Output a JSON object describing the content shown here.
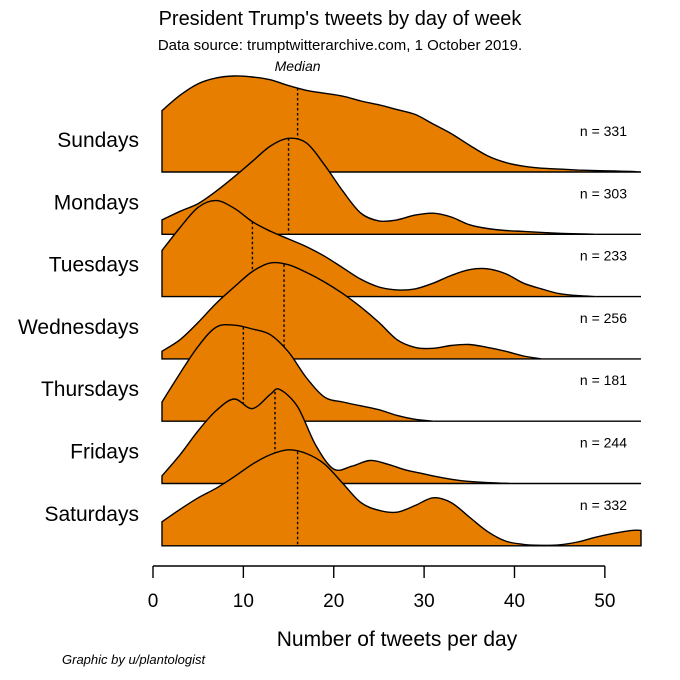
{
  "chart_data": {
    "type": "ridgeline",
    "title": "President Trump's tweets by day of week",
    "subtitle": "Data source: trumptwitterarchive.com, 1 October 2019.",
    "xlabel": "Number of tweets per day",
    "xlim": [
      0,
      54
    ],
    "xticks": [
      "0",
      "10",
      "20",
      "30",
      "40",
      "50"
    ],
    "median_label": "Median",
    "credit": "Graphic by u/plantologist",
    "fill_color": "#E87E00",
    "series": [
      {
        "name": "Sundays",
        "n_label": "n = 331",
        "median": 16,
        "x": [
          1,
          3,
          5,
          7,
          9,
          11,
          13,
          15,
          17,
          19,
          21,
          23,
          25,
          27,
          29,
          31,
          33,
          35,
          37,
          39,
          41,
          43,
          45,
          47,
          49,
          51,
          53,
          54
        ],
        "density": [
          0.64,
          0.8,
          0.92,
          0.98,
          1.0,
          0.99,
          0.96,
          0.9,
          0.85,
          0.82,
          0.79,
          0.74,
          0.7,
          0.65,
          0.6,
          0.5,
          0.4,
          0.28,
          0.17,
          0.1,
          0.06,
          0.04,
          0.03,
          0.02,
          0.015,
          0.01,
          0.005,
          0.0
        ]
      },
      {
        "name": "Mondays",
        "n_label": "n = 303",
        "median": 15,
        "x": [
          1,
          3,
          5,
          7,
          9,
          11,
          13,
          15,
          17,
          19,
          21,
          23,
          25,
          27,
          29,
          31,
          33,
          35,
          37,
          39,
          41,
          43,
          45,
          47,
          49
        ],
        "density": [
          0.15,
          0.24,
          0.32,
          0.45,
          0.6,
          0.76,
          0.92,
          1.0,
          0.95,
          0.72,
          0.45,
          0.22,
          0.14,
          0.15,
          0.2,
          0.22,
          0.18,
          0.1,
          0.06,
          0.04,
          0.03,
          0.02,
          0.01,
          0.005,
          0.0
        ]
      },
      {
        "name": "Tuesdays",
        "n_label": "n = 233",
        "median": 11,
        "x": [
          1,
          3,
          5,
          7,
          9,
          11,
          13,
          15,
          17,
          19,
          21,
          23,
          25,
          27,
          29,
          31,
          33,
          35,
          37,
          39,
          41,
          43,
          45,
          47,
          49
        ],
        "density": [
          0.48,
          0.72,
          0.93,
          1.0,
          0.92,
          0.78,
          0.68,
          0.6,
          0.52,
          0.42,
          0.3,
          0.18,
          0.1,
          0.07,
          0.08,
          0.14,
          0.22,
          0.28,
          0.29,
          0.24,
          0.14,
          0.08,
          0.03,
          0.01,
          0.0
        ]
      },
      {
        "name": "Wednesdays",
        "n_label": "n = 256",
        "median": 14.5,
        "x": [
          1,
          3,
          5,
          7,
          9,
          11,
          13,
          15,
          17,
          19,
          21,
          23,
          25,
          27,
          29,
          31,
          33,
          35,
          37,
          39,
          41,
          43
        ],
        "density": [
          0.08,
          0.2,
          0.38,
          0.58,
          0.75,
          0.91,
          1.0,
          0.98,
          0.9,
          0.8,
          0.68,
          0.54,
          0.38,
          0.2,
          0.12,
          0.11,
          0.14,
          0.15,
          0.12,
          0.08,
          0.03,
          0.0
        ]
      },
      {
        "name": "Thursdays",
        "n_label": "n = 181",
        "median": 10,
        "x": [
          1,
          3,
          5,
          7,
          9,
          11,
          13,
          15,
          17,
          19,
          21,
          23,
          25,
          27,
          29,
          31
        ],
        "density": [
          0.2,
          0.5,
          0.78,
          0.98,
          1.0,
          0.96,
          0.9,
          0.72,
          0.45,
          0.25,
          0.2,
          0.16,
          0.12,
          0.06,
          0.02,
          0.0
        ]
      },
      {
        "name": "Fridays",
        "n_label": "n = 244",
        "median": 13.5,
        "x": [
          1,
          3,
          5,
          7,
          9,
          11,
          13,
          14,
          16,
          18,
          20,
          22,
          24,
          26,
          28,
          30,
          32,
          34,
          36,
          38,
          40
        ],
        "density": [
          0.08,
          0.3,
          0.55,
          0.76,
          0.88,
          0.78,
          0.93,
          0.98,
          0.8,
          0.4,
          0.15,
          0.18,
          0.24,
          0.2,
          0.14,
          0.1,
          0.06,
          0.03,
          0.015,
          0.005,
          0.0
        ]
      },
      {
        "name": "Saturdays",
        "n_label": "n = 332",
        "median": 16,
        "x": [
          1,
          3,
          5,
          7,
          9,
          11,
          13,
          15,
          17,
          19,
          21,
          23,
          25,
          27,
          29,
          31,
          33,
          35,
          37,
          39,
          41,
          43,
          45,
          47,
          49,
          51,
          53,
          54
        ],
        "density": [
          0.25,
          0.38,
          0.5,
          0.6,
          0.72,
          0.85,
          0.95,
          1.0,
          0.96,
          0.85,
          0.65,
          0.45,
          0.37,
          0.35,
          0.42,
          0.5,
          0.45,
          0.3,
          0.15,
          0.05,
          0.015,
          0.005,
          0.01,
          0.04,
          0.09,
          0.13,
          0.16,
          0.16
        ]
      }
    ]
  }
}
